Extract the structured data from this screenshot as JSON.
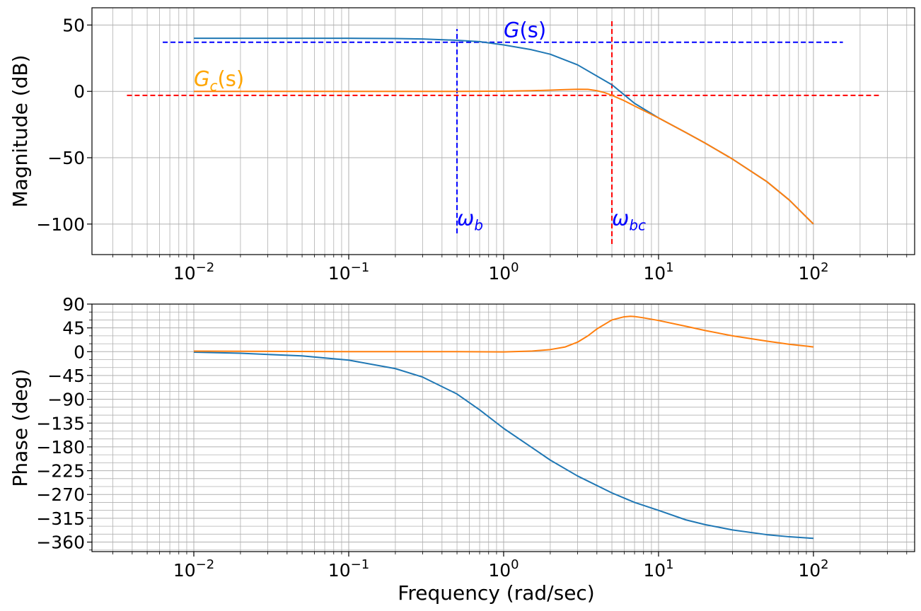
{
  "chart_data": [
    {
      "type": "line",
      "panel": "magnitude",
      "title": "",
      "xlabel": "",
      "ylabel": "Magnitude (dB)",
      "xscale": "log",
      "xlim": [
        0.0022,
        450
      ],
      "ylim": [
        -123,
        63
      ],
      "grid": true,
      "x_tick_labels": [
        {
          "value": 0.01,
          "mant": "10",
          "exp": "−2"
        },
        {
          "value": 0.1,
          "mant": "10",
          "exp": "−1"
        },
        {
          "value": 1,
          "mant": "10",
          "exp": "0"
        },
        {
          "value": 10,
          "mant": "10",
          "exp": "1"
        },
        {
          "value": 100,
          "mant": "10",
          "exp": "2"
        }
      ],
      "y_ticks": [
        50,
        0,
        -50,
        -100
      ],
      "y_tick_labels": [
        "50",
        "0",
        "−50",
        "−100"
      ],
      "series": [
        {
          "color": "#1f77b4",
          "x": [
            0.01,
            0.02,
            0.05,
            0.1,
            0.2,
            0.3,
            0.5,
            0.7,
            1,
            1.5,
            2,
            3,
            5,
            7,
            10,
            15,
            20,
            30,
            50,
            70,
            100
          ],
          "y": [
            40,
            40,
            40,
            40,
            39.8,
            39.5,
            38.5,
            37.5,
            35,
            31.5,
            28,
            20,
            5,
            -9,
            -20,
            -31,
            -39,
            -51,
            -68,
            -82,
            -100
          ]
        },
        {
          "color": "#ff7f0e",
          "x": [
            0.01,
            0.05,
            0.1,
            0.5,
            1,
            1.5,
            2,
            2.5,
            3,
            3.5,
            4,
            4.5,
            5,
            6,
            7,
            10,
            15,
            20,
            30,
            50,
            70,
            100
          ],
          "y": [
            0,
            0,
            0,
            0,
            0.2,
            0.5,
            0.9,
            1.3,
            1.6,
            1.5,
            0.5,
            -1,
            -3,
            -7,
            -11,
            -20,
            -31,
            -39,
            -51,
            -68,
            -82,
            -100
          ]
        }
      ],
      "reference_lines": [
        {
          "orientation": "horizontal",
          "y": 37,
          "x_from": 0.0063,
          "x_to": 155,
          "color": "#0000ff"
        },
        {
          "orientation": "horizontal",
          "y": -3,
          "x_from": 0.0037,
          "x_to": 265,
          "color": "#ff0000"
        },
        {
          "orientation": "vertical",
          "x": 0.5,
          "y_from": -107,
          "y_to": 47,
          "color": "#0000ff"
        },
        {
          "orientation": "vertical",
          "x": 5,
          "y_from": -115,
          "y_to": 54,
          "color": "#ff0000"
        }
      ],
      "annotations": [
        {
          "base": "G",
          "sub": "",
          "rest": "(s)",
          "x": 1.0,
          "y": 41,
          "color": "#0000ff"
        },
        {
          "base": "G",
          "sub": "c",
          "rest": "(s)",
          "x": 0.01,
          "y": 4,
          "color": "#ffa500"
        },
        {
          "base": "ω",
          "sub": "b",
          "rest": "",
          "x": 0.5,
          "y": -101,
          "color": "#0000ff"
        },
        {
          "base": "ω",
          "sub": "bc",
          "rest": "",
          "x": 5.0,
          "y": -101,
          "color": "#0000ff"
        }
      ]
    },
    {
      "type": "line",
      "panel": "phase",
      "title": "",
      "xlabel": "Frequency (rad/sec)",
      "ylabel": "Phase (deg)",
      "xscale": "log",
      "xlim": [
        0.0022,
        450
      ],
      "ylim": [
        -378,
        90
      ],
      "grid": true,
      "x_tick_labels": [
        {
          "value": 0.01,
          "mant": "10",
          "exp": "−2"
        },
        {
          "value": 0.1,
          "mant": "10",
          "exp": "−1"
        },
        {
          "value": 1,
          "mant": "10",
          "exp": "0"
        },
        {
          "value": 10,
          "mant": "10",
          "exp": "1"
        },
        {
          "value": 100,
          "mant": "10",
          "exp": "2"
        }
      ],
      "y_ticks": [
        90,
        45,
        0,
        -45,
        -90,
        -135,
        -180,
        -225,
        -270,
        -315,
        -360
      ],
      "y_tick_labels": [
        "90",
        "45",
        "0",
        "−45",
        "−90",
        "−135",
        "−180",
        "−225",
        "−270",
        "−315",
        "−360"
      ],
      "series": [
        {
          "color": "#1f77b4",
          "x": [
            0.01,
            0.02,
            0.05,
            0.1,
            0.2,
            0.3,
            0.5,
            0.7,
            1,
            1.5,
            2,
            3,
            5,
            7,
            10,
            15,
            20,
            30,
            50,
            70,
            100
          ],
          "y": [
            -1,
            -3,
            -8,
            -16,
            -32,
            -48,
            -80,
            -110,
            -145,
            -180,
            -205,
            -235,
            -267,
            -285,
            -300,
            -318,
            -327,
            -337,
            -346,
            -350,
            -353
          ]
        },
        {
          "color": "#ff7f0e",
          "x": [
            0.01,
            0.1,
            0.5,
            1,
            1.5,
            2,
            2.5,
            3,
            3.5,
            4,
            5,
            6,
            6.6,
            7,
            8,
            10,
            15,
            20,
            30,
            50,
            70,
            100
          ],
          "y": [
            1,
            0,
            0,
            -0.5,
            1,
            4,
            9,
            18,
            30,
            43,
            60,
            66,
            67,
            66.5,
            64,
            59,
            48,
            40,
            30,
            20,
            14,
            9
          ]
        }
      ]
    }
  ]
}
